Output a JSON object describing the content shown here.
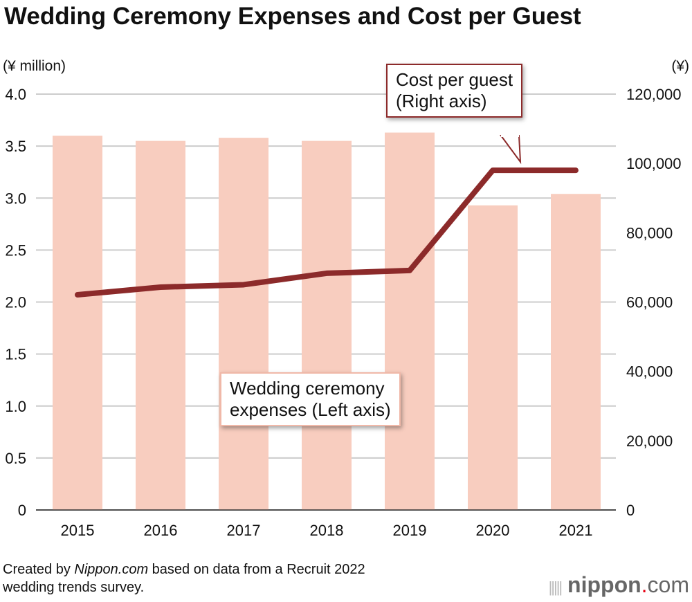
{
  "chart_data": {
    "type": "bar+line",
    "title": "Wedding Ceremony Expenses and Cost per Guest",
    "left_axis": {
      "unit": "(¥ million)",
      "ylim": [
        0,
        4.0
      ],
      "ticks": [
        "0",
        "0.5",
        "1.0",
        "1.5",
        "2.0",
        "2.5",
        "3.0",
        "3.5",
        "4.0"
      ]
    },
    "right_axis": {
      "unit": "(¥)",
      "ylim": [
        0,
        120000
      ],
      "ticks": [
        "0",
        "20,000",
        "40,000",
        "60,000",
        "80,000",
        "100,000",
        "120,000"
      ]
    },
    "categories": [
      "2015",
      "2016",
      "2017",
      "2018",
      "2019",
      "2020",
      "2021"
    ],
    "series": [
      {
        "name": "Wedding ceremony expenses (Left axis)",
        "type": "bar",
        "axis": "left",
        "color": "#f8cdbf",
        "values": [
          3.6,
          3.55,
          3.58,
          3.55,
          3.63,
          2.93,
          3.04
        ]
      },
      {
        "name": "Cost per guest (Right axis)",
        "type": "line",
        "axis": "right",
        "color": "#8c2a2a",
        "values": [
          62100,
          64300,
          65000,
          68300,
          69100,
          98000,
          98000
        ]
      }
    ],
    "grid": true,
    "annotations": {
      "line_label": [
        "Cost per guest",
        "(Right axis)"
      ],
      "bar_label": [
        "Wedding ceremony",
        "expenses (Left axis)"
      ]
    }
  },
  "source": {
    "prefix": "Created by ",
    "site": "Nippon.com",
    "suffix": " based on data from a Recruit 2022",
    "line2": "wedding trends survey."
  },
  "logo": {
    "name": "nippon",
    "dot": ".",
    "tld": "com",
    "dot_color": "#e60012"
  }
}
